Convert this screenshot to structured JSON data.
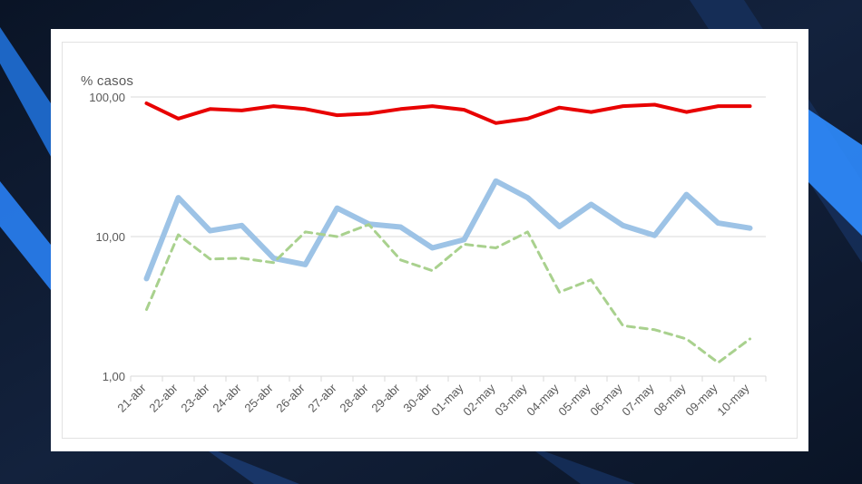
{
  "chart_data": {
    "type": "line",
    "y_scale": "log",
    "ylabel": "% casos",
    "ylim": [
      1,
      100
    ],
    "yticks": [
      {
        "value": 1,
        "label": "1,00"
      },
      {
        "value": 10,
        "label": "10,00"
      },
      {
        "value": 100,
        "label": "100,00"
      }
    ],
    "categories": [
      "21-abr",
      "22-abr",
      "23-abr",
      "24-abr",
      "25-abr",
      "26-abr",
      "27-abr",
      "28-abr",
      "29-abr",
      "30-abr",
      "01-may",
      "02-may",
      "03-may",
      "04-may",
      "05-may",
      "06-may",
      "07-may",
      "08-may",
      "09-may",
      "10-may"
    ],
    "series": [
      {
        "name": "red-series",
        "color": "#e80000",
        "dash": "none",
        "width": 4,
        "values": [
          90,
          70,
          82,
          80,
          86,
          82,
          74,
          76,
          82,
          86,
          81,
          65,
          70,
          84,
          78,
          86,
          88,
          78,
          86,
          86
        ]
      },
      {
        "name": "blue-series",
        "color": "#9dc3e6",
        "dash": "none",
        "width": 6,
        "values": [
          5,
          19,
          11,
          12,
          7,
          6.3,
          16,
          12.3,
          11.7,
          8.3,
          9.5,
          25,
          19,
          11.8,
          17,
          12,
          10.2,
          20,
          12.5,
          11.5
        ]
      },
      {
        "name": "green-series",
        "color": "#a9d18e",
        "dash": "8,6",
        "width": 3,
        "values": [
          3,
          10.3,
          6.9,
          7,
          6.5,
          10.8,
          10,
          12.2,
          6.8,
          5.7,
          8.8,
          8.3,
          10.8,
          4,
          4.9,
          2.3,
          2.15,
          1.85,
          1.25,
          1.85
        ]
      }
    ],
    "grid": true
  }
}
